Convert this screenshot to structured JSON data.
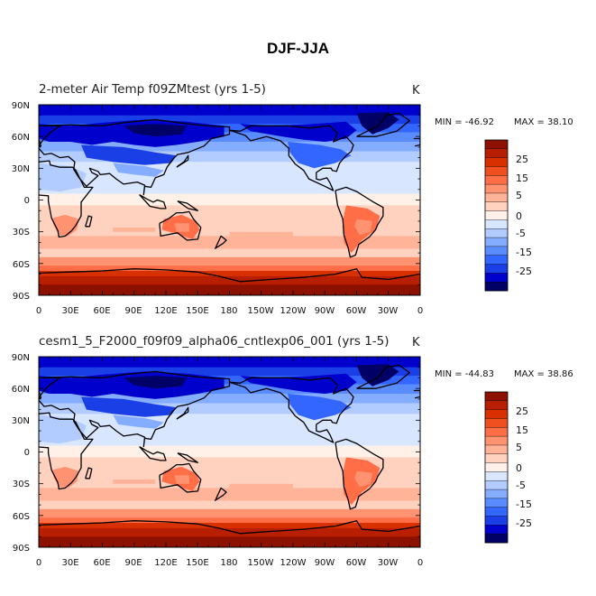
{
  "figure_title": "DJF-JJA",
  "colors": {
    "levels": [
      "#000066",
      "#0000cc",
      "#1a3fe6",
      "#3366ff",
      "#5a8cff",
      "#85adff",
      "#b3ccff",
      "#d9e6ff",
      "#fff0e8",
      "#ffd2bf",
      "#ffb499",
      "#ff9270",
      "#ff6e47",
      "#f04f20",
      "#d93000",
      "#b81f00",
      "#8c1100"
    ],
    "coast": "#000000"
  },
  "panels": [
    {
      "title": "2-meter Air Temp f09ZMtest (yrs 1-5)",
      "unit": "K",
      "min_text": "MIN = -46.92",
      "max_text": "MAX =  38.10",
      "cb_labels": [
        "25",
        "15",
        "5",
        "0",
        "-5",
        "-15",
        "-25"
      ]
    },
    {
      "title": "cesm1_5_F2000_f09f09_alpha06_cntlexp06_001 (yrs 1-5)",
      "unit": "K",
      "min_text": "MIN = -44.83",
      "max_text": "MAX =  38.86",
      "cb_labels": [
        "25",
        "15",
        "5",
        "0",
        "-5",
        "-15",
        "-25"
      ]
    }
  ],
  "axes": {
    "lat_ticks": [
      "90N",
      "60N",
      "30N",
      "0",
      "30S",
      "60S",
      "90S"
    ],
    "lon_ticks": [
      "0",
      "30E",
      "60E",
      "90E",
      "120E",
      "150E",
      "180",
      "150W",
      "120W",
      "90W",
      "60W",
      "30W",
      "0"
    ]
  },
  "chart_data": {
    "type": "heatmap",
    "projection": "cylindrical equidistant",
    "x_range": [
      0,
      360
    ],
    "y_range": [
      -90,
      90
    ],
    "contour_levels": [
      -35,
      -30,
      -25,
      -20,
      -15,
      -10,
      -5,
      0,
      2,
      5,
      10,
      15,
      20,
      25,
      30,
      35
    ]
  }
}
